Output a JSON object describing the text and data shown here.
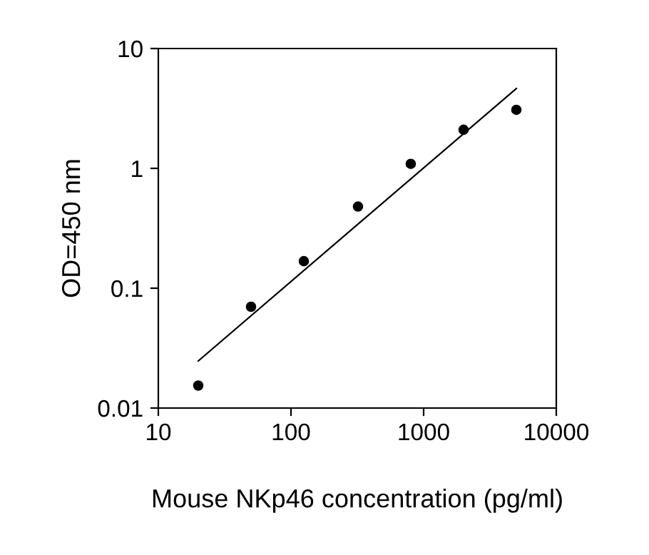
{
  "chart_data": {
    "type": "scatter",
    "xlabel": "Mouse NKp46 concentration (pg/ml)",
    "ylabel": "OD=450 nm",
    "log": "xy",
    "xlim": [
      10,
      10000
    ],
    "xticks": [
      10,
      100,
      1000,
      10000
    ],
    "ylim": [
      0.01,
      10
    ],
    "yticks": [
      0.01,
      0.1,
      1,
      10
    ],
    "grid": false,
    "series": [
      {
        "color": "#000000",
        "marker": "circle",
        "x": [
          20,
          50,
          125,
          320,
          800,
          2000,
          5000
        ],
        "values": [
          0.0154,
          0.07,
          0.168,
          0.48,
          1.09,
          2.1,
          3.08
        ]
      },
      {
        "type": "line",
        "color": "#000000",
        "line_style": "solid",
        "x": [
          20,
          5000
        ],
        "values": [
          0.0247,
          4.64
        ]
      }
    ]
  }
}
